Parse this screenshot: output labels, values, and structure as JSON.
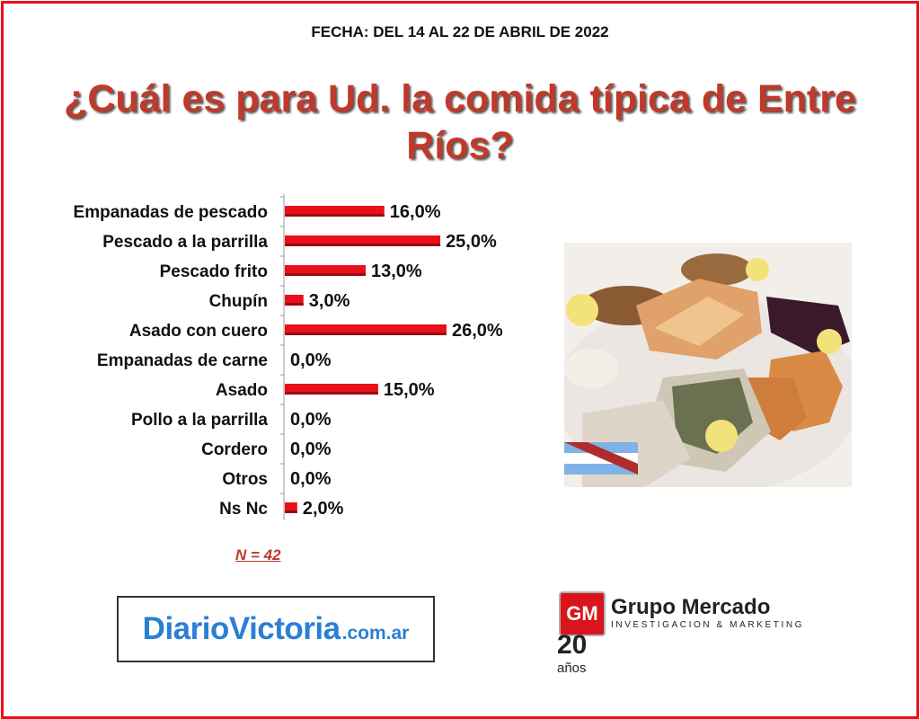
{
  "header": {
    "date": "FECHA: DEL 14 AL 22 DE ABRIL DE 2022",
    "title": "¿Cuál es para Ud. la comida típica de Entre Ríos?"
  },
  "chart_data": {
    "type": "bar",
    "orientation": "horizontal",
    "categories": [
      "Empanadas de pescado",
      "Pescado a la parrilla",
      "Pescado frito",
      "Chupín",
      "Asado con cuero",
      "Empanadas de carne",
      "Asado",
      "Pollo a la parrilla",
      "Cordero",
      "Otros",
      "Ns Nc"
    ],
    "values": [
      16.0,
      25.0,
      13.0,
      3.0,
      26.0,
      0.0,
      15.0,
      0.0,
      0.0,
      0.0,
      2.0
    ],
    "value_labels": [
      "16,0%",
      "25,0%",
      "13,0%",
      "3,0%",
      "26,0%",
      "0,0%",
      "15,0%",
      "0,0%",
      "0,0%",
      "0,0%",
      "2,0%"
    ],
    "xlim": [
      0,
      26
    ],
    "bar_color": "#e8101a",
    "grid": false,
    "legend": "none"
  },
  "sample": {
    "label": "N = 42"
  },
  "sponsor": {
    "main": "DiarioVictoria",
    "domain": ".com.ar"
  },
  "pollster": {
    "logo": "GM",
    "name": "Grupo Mercado",
    "subtitle": "INVESTIGACION & MARKETING",
    "years": "20",
    "years_word": "años"
  },
  "colors": {
    "accent": "#e8101a",
    "title": "#c0392b",
    "sponsor": "#2b7fd4"
  },
  "image": {
    "subject": "platter of grilled fish, empanadas and lemon with Entre Ríos flag"
  }
}
